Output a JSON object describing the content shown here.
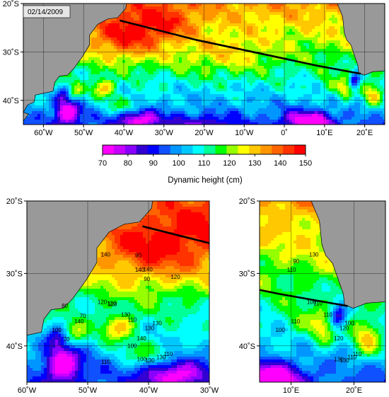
{
  "date_label": "02/14/2009",
  "colorbar": {
    "title": "Dynamic height (cm)",
    "ticks": [
      70,
      80,
      90,
      100,
      110,
      120,
      130,
      140,
      150
    ],
    "colors": [
      "#ff00ff",
      "#c800ff",
      "#8a00ff",
      "#3200d2",
      "#0000ff",
      "#0f50ff",
      "#0096ff",
      "#00c8ff",
      "#00ffff",
      "#00ff96",
      "#00ff00",
      "#96ff00",
      "#ffff00",
      "#ffc800",
      "#ff9600",
      "#ff6400",
      "#ff3200",
      "#ff0000"
    ]
  },
  "colors": {
    "land": "#999999",
    "ocean_fill": "#00ffff",
    "transect": "#000000"
  },
  "panels": [
    {
      "id": "top",
      "lon_range": [
        -65,
        25
      ],
      "lat_range": [
        -45,
        -20
      ],
      "lon_ticks": [
        -60,
        -50,
        -40,
        -30,
        -20,
        -10,
        0,
        10,
        20
      ],
      "lon_tick_labels": [
        "60˚W",
        "50˚W",
        "40˚W",
        "30˚W",
        "20˚W",
        "10˚W",
        "0˚",
        "10˚E",
        "20˚E"
      ],
      "lat_ticks": [
        -20,
        -30,
        -40
      ],
      "lat_tick_labels": [
        "20˚S",
        "30˚S",
        "40˚S"
      ],
      "contour_labels": []
    },
    {
      "id": "bottom-left",
      "lon_range": [
        -60,
        -30
      ],
      "lat_range": [
        -45,
        -20
      ],
      "lon_ticks": [
        -60,
        -50,
        -40,
        -30
      ],
      "lon_tick_labels": [
        "60˚W",
        "50˚W",
        "40˚W",
        "30˚W"
      ],
      "lat_ticks": [
        -20,
        -30,
        -40
      ],
      "lat_tick_labels": [
        "20˚S",
        "30˚S",
        "40˚S"
      ],
      "contour_labels": [
        "140",
        "140",
        "140",
        "130",
        "130",
        "140",
        "120",
        "130",
        "130",
        "140",
        "120",
        "110",
        "100",
        "100",
        "130",
        "90",
        "70",
        "110",
        "110",
        "120",
        "100",
        "90",
        "70",
        "80",
        "110"
      ]
    },
    {
      "id": "bottom-right",
      "lon_range": [
        5,
        25
      ],
      "lat_range": [
        -45,
        -20
      ],
      "lon_ticks": [
        10,
        20
      ],
      "lon_tick_labels": [
        "10˚E",
        "20˚E"
      ],
      "lat_ticks": [
        -20,
        -30,
        -40
      ],
      "lat_tick_labels": [
        "20˚S",
        "30˚S",
        "40˚S"
      ],
      "contour_labels": [
        "120",
        "110",
        "130",
        "110",
        "120",
        "100",
        "100",
        "90",
        "130",
        "110",
        "110",
        "110",
        "130",
        "100",
        "110"
      ]
    }
  ],
  "transect": [
    [
      -41,
      -23.5
    ],
    [
      -22,
      -27.5
    ],
    [
      -5,
      -30.5
    ],
    [
      8,
      -32.8
    ],
    [
      19,
      -34.5
    ]
  ]
}
